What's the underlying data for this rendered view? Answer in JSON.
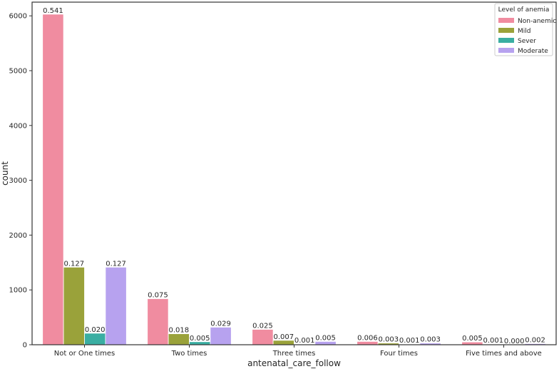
{
  "chart_data": {
    "type": "bar",
    "xlabel": "antenatal_care_follow",
    "ylabel": "count",
    "ylim": [
      0,
      6250
    ],
    "yticks": [
      0,
      1000,
      2000,
      3000,
      4000,
      5000,
      6000
    ],
    "categories": [
      "Not or One times",
      "Two times",
      "Three times",
      "Four times",
      "Five times and above"
    ],
    "legend": {
      "title": "Level of anemia",
      "position": "top-right"
    },
    "grid": false,
    "series": [
      {
        "name": "Non-anemic",
        "color": "#f08ca0",
        "values": [
          6030,
          840,
          280,
          60,
          50
        ],
        "labels": [
          "0.541",
          "0.075",
          "0.025",
          "0.006",
          "0.005"
        ]
      },
      {
        "name": "Mild",
        "color": "#9aa23a",
        "values": [
          1415,
          200,
          80,
          30,
          10
        ],
        "labels": [
          "0.127",
          "0.018",
          "0.007",
          "0.003",
          "0.001"
        ]
      },
      {
        "name": "Sever",
        "color": "#3aaea2",
        "values": [
          210,
          55,
          12,
          10,
          3
        ],
        "labels": [
          "0.020",
          "0.005",
          "0.001",
          "0.001",
          "0.000"
        ]
      },
      {
        "name": "Moderate",
        "color": "#b7a2ef",
        "values": [
          1415,
          320,
          60,
          30,
          20
        ],
        "labels": [
          "0.127",
          "0.029",
          "0.005",
          "0.003",
          "0.002"
        ]
      }
    ]
  }
}
